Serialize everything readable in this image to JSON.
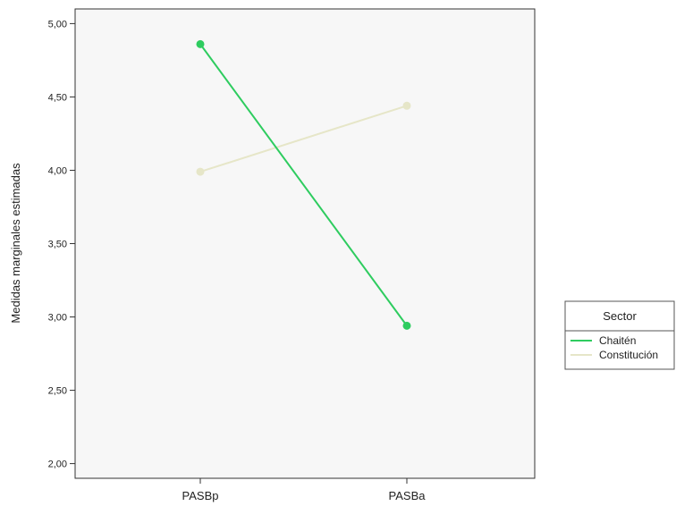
{
  "chart_data": {
    "type": "line",
    "title": "",
    "xlabel": "",
    "ylabel": "Medidas marginales estimadas",
    "categories": [
      "PASBp",
      "PASBa"
    ],
    "ylim": [
      1.9,
      5.1
    ],
    "yticks": [
      2.0,
      2.5,
      3.0,
      3.5,
      4.0,
      4.5,
      5.0
    ],
    "ytick_labels": [
      "2,00",
      "2,50",
      "3,00",
      "3,50",
      "4,00",
      "4,50",
      "5,00"
    ],
    "series": [
      {
        "name": "Chaitén",
        "values": [
          4.86,
          2.94
        ],
        "color": "#2ecc5f"
      },
      {
        "name": "Constitución",
        "values": [
          3.99,
          4.44
        ],
        "color": "#e6e6c8"
      }
    ],
    "legend": {
      "title": "Sector",
      "position": "right"
    },
    "grid": false,
    "plot_background": "#f7f7f7"
  }
}
